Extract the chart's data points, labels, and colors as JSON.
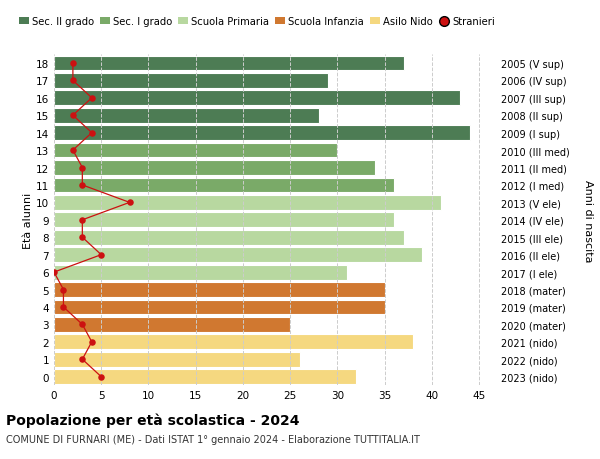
{
  "ages": [
    18,
    17,
    16,
    15,
    14,
    13,
    12,
    11,
    10,
    9,
    8,
    7,
    6,
    5,
    4,
    3,
    2,
    1,
    0
  ],
  "right_labels": [
    "2005 (V sup)",
    "2006 (IV sup)",
    "2007 (III sup)",
    "2008 (II sup)",
    "2009 (I sup)",
    "2010 (III med)",
    "2011 (II med)",
    "2012 (I med)",
    "2013 (V ele)",
    "2014 (IV ele)",
    "2015 (III ele)",
    "2016 (II ele)",
    "2017 (I ele)",
    "2018 (mater)",
    "2019 (mater)",
    "2020 (mater)",
    "2021 (nido)",
    "2022 (nido)",
    "2023 (nido)"
  ],
  "bar_values": [
    37,
    29,
    43,
    28,
    44,
    30,
    34,
    36,
    41,
    36,
    37,
    39,
    31,
    35,
    35,
    25,
    38,
    26,
    32
  ],
  "bar_colors": [
    "#4d7c54",
    "#4d7c54",
    "#4d7c54",
    "#4d7c54",
    "#4d7c54",
    "#7aaa68",
    "#7aaa68",
    "#7aaa68",
    "#b8d8a0",
    "#b8d8a0",
    "#b8d8a0",
    "#b8d8a0",
    "#b8d8a0",
    "#d07830",
    "#d07830",
    "#d07830",
    "#f5d880",
    "#f5d880",
    "#f5d880"
  ],
  "stranieri_values": [
    2,
    2,
    4,
    2,
    4,
    2,
    3,
    3,
    8,
    3,
    3,
    5,
    0,
    1,
    1,
    3,
    4,
    3,
    5
  ],
  "legend_labels": [
    "Sec. II grado",
    "Sec. I grado",
    "Scuola Primaria",
    "Scuola Infanzia",
    "Asilo Nido",
    "Stranieri"
  ],
  "legend_colors": [
    "#4d7c54",
    "#7aaa68",
    "#b8d8a0",
    "#d07830",
    "#f5d880",
    "#cc1111"
  ],
  "ylabel_left": "Età alunni",
  "ylabel_right": "Anni di nascita",
  "title": "Popolazione per età scolastica - 2024",
  "subtitle": "COMUNE DI FURNARI (ME) - Dati ISTAT 1° gennaio 2024 - Elaborazione TUTTITALIA.IT",
  "xlim": [
    0,
    47
  ],
  "xticks": [
    0,
    5,
    10,
    15,
    20,
    25,
    30,
    35,
    40,
    45
  ],
  "bg_color": "#ffffff",
  "bar_height": 0.85,
  "grid_color": "#cccccc"
}
